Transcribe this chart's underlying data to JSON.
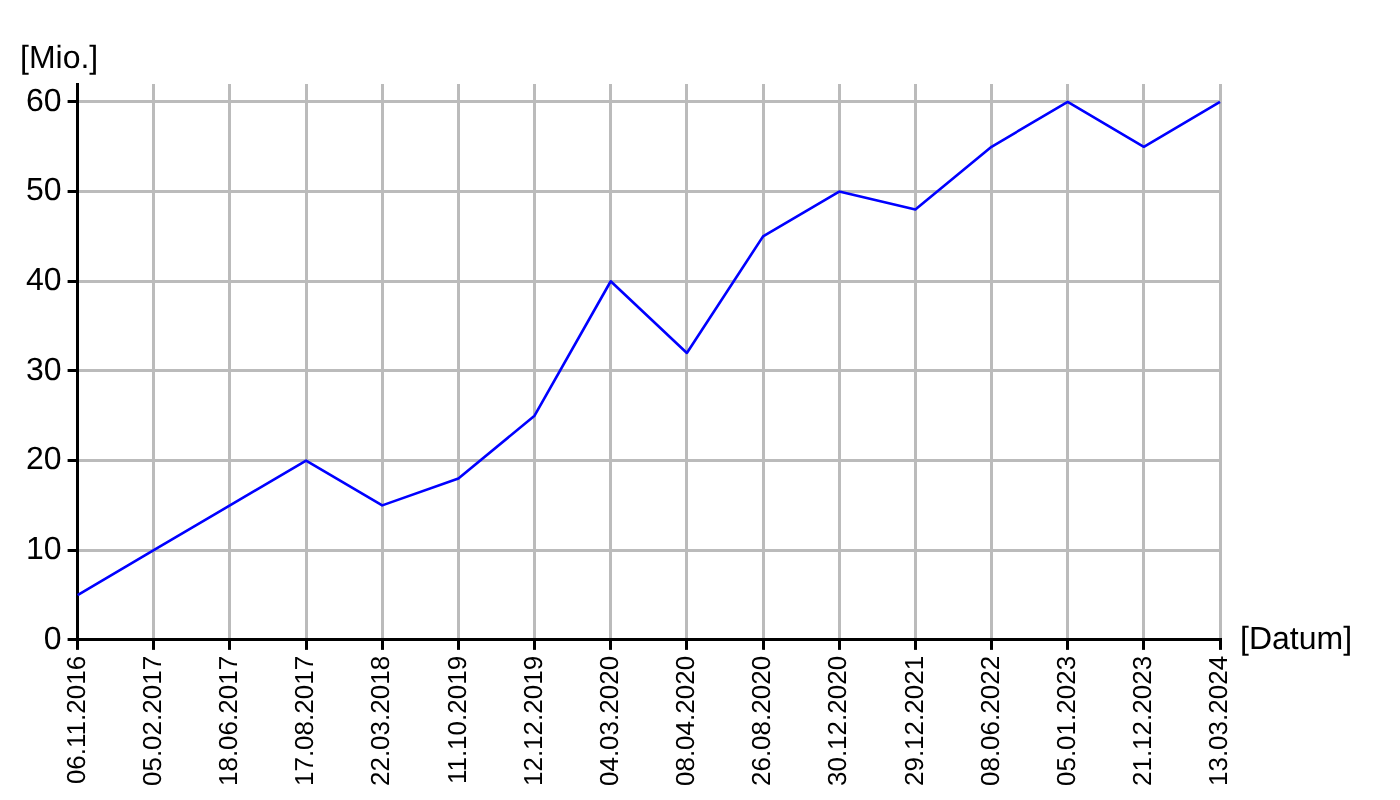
{
  "chart_data": {
    "type": "line",
    "xlabel": "[Datum]",
    "ylabel": "[Mio.]",
    "categories": [
      "06.11.2016",
      "05.02.2017",
      "18.06.2017",
      "17.08.2017",
      "22.03.2018",
      "11.10.2019",
      "12.12.2019",
      "04.03.2020",
      "08.04.2020",
      "26.08.2020",
      "30.12.2020",
      "29.12.2021",
      "08.06.2022",
      "05.01.2023",
      "21.12.2023",
      "13.03.2024"
    ],
    "series": [
      {
        "color": "#0000ff",
        "values": [
          5,
          10,
          15,
          20,
          15,
          18,
          25,
          40,
          32,
          45,
          50,
          48,
          55,
          60,
          55,
          60
        ]
      }
    ],
    "ylim": [
      0,
      62
    ],
    "yticks": [
      0,
      10,
      20,
      30,
      40,
      50,
      60
    ],
    "grid": true,
    "legend": false,
    "marker": "none",
    "line_style": "solid"
  }
}
